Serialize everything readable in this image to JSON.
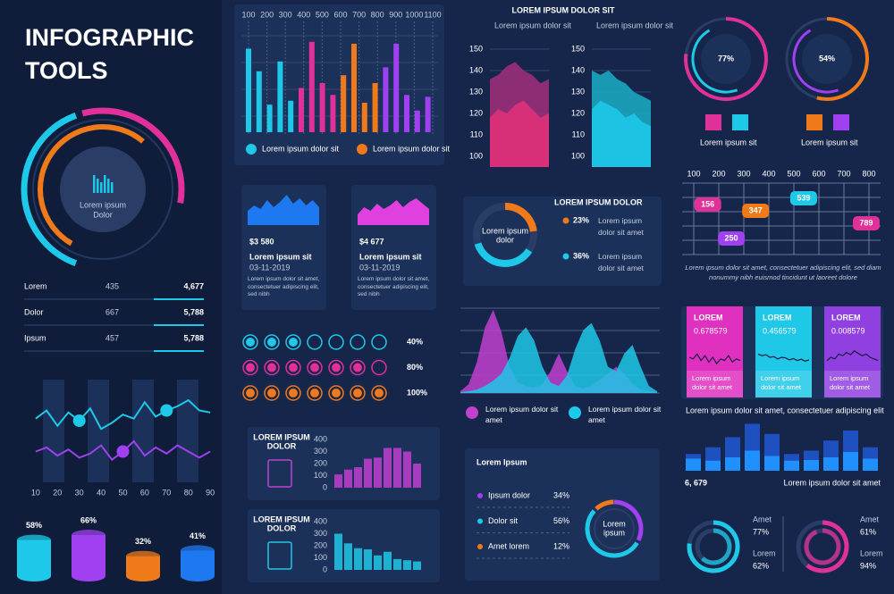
{
  "title_lines": [
    "INFOGRAPHIC",
    "TOOLS"
  ],
  "hub": {
    "label_lines": [
      "Lorem ipsum",
      "Dolor"
    ]
  },
  "summary_table": {
    "rows": [
      [
        "Lorem",
        435,
        "4,677"
      ],
      [
        "Dolor",
        667,
        "5,788"
      ],
      [
        "Ipsum",
        457,
        "5,788"
      ]
    ]
  },
  "wave_chart": {
    "type": "line",
    "x": [
      10,
      15,
      20,
      25,
      30,
      35,
      40,
      45,
      50,
      55,
      60,
      65,
      70,
      75,
      80,
      85,
      90
    ],
    "xlim": [
      8,
      92
    ],
    "xticks": [
      10,
      20,
      30,
      40,
      50,
      60,
      70,
      80,
      90
    ],
    "ylim": [
      0,
      100
    ],
    "series": [
      {
        "color": "#1ec8e8",
        "values": [
          62,
          70,
          55,
          68,
          60,
          72,
          52,
          58,
          66,
          62,
          78,
          64,
          70,
          74,
          80,
          70,
          68
        ]
      },
      {
        "color": "#a040f0",
        "values": [
          30,
          34,
          26,
          32,
          24,
          28,
          36,
          22,
          30,
          40,
          26,
          34,
          28,
          36,
          30,
          24,
          30
        ]
      }
    ]
  },
  "cylinders": {
    "type": "bar",
    "values": [
      58,
      66,
      32,
      41
    ],
    "value_labels": [
      "58%",
      "66%",
      "32%",
      "41%"
    ],
    "colors": [
      "#1ec8e8",
      "#a040f0",
      "#f07a1a",
      "#1e78f0"
    ],
    "ylim": [
      0,
      100
    ]
  },
  "column_chart": {
    "type": "bar",
    "xticks": [
      100,
      200,
      300,
      400,
      500,
      600,
      700,
      800,
      900,
      1000,
      1100
    ],
    "xlim": [
      100,
      1100
    ],
    "ylim": [
      0,
      100
    ],
    "values": [
      85,
      62,
      28,
      72,
      32,
      45,
      92,
      50,
      38,
      58,
      90,
      30,
      50,
      66,
      90,
      38,
      22,
      36
    ],
    "colors": [
      "#1ec8e8",
      "#1ec8e8",
      "#1ec8e8",
      "#1ec8e8",
      "#1ec8e8",
      "#e0309a",
      "#e0309a",
      "#e0309a",
      "#e0309a",
      "#f07a1a",
      "#f07a1a",
      "#f07a1a",
      "#f07a1a",
      "#a040f0",
      "#a040f0",
      "#a040f0",
      "#a040f0",
      "#a040f0"
    ],
    "legend": [
      {
        "name": "Lorem ipsum dolor sit",
        "color": "#1ec8e8"
      },
      {
        "name": "Lorem ipsum dolor sit",
        "color": "#f07a1a"
      }
    ]
  },
  "cards": [
    {
      "amount": "$3 580",
      "title": "Lorem ipsum sit",
      "date": "03-11-2019",
      "text": "Lorem ipsum dolor sit amet, consectetuer adipiscing elit, sed nibh",
      "color": "#1e78f0",
      "ylim": [
        0,
        100
      ],
      "values": [
        40,
        55,
        45,
        70,
        50,
        65,
        85,
        60,
        75,
        55,
        70,
        50
      ]
    },
    {
      "amount": "$4 677",
      "title": "Lorem ipsum sit",
      "date": "03-11-2019",
      "text": "Lorem ipsum dolor sit amet, consectetuer adipiscing elit, sed nibh",
      "color": "#e040e0",
      "ylim": [
        0,
        100
      ],
      "values": [
        30,
        50,
        40,
        60,
        45,
        55,
        70,
        50,
        65,
        75,
        60,
        45
      ]
    }
  ],
  "dot_rows": {
    "values": [
      40,
      80,
      100
    ],
    "value_labels": [
      "40%",
      "80%",
      "100%"
    ],
    "colors": [
      "#1ec8e8",
      "#e0309a",
      "#f07a1a"
    ]
  },
  "book_charts": [
    {
      "type": "bar",
      "title_lines": [
        "LOREM IPSUM",
        "DOLOR"
      ],
      "ylim": [
        0,
        400
      ],
      "yticks": [
        0,
        100,
        200,
        300,
        400
      ],
      "color": "#c040d0",
      "values": [
        110,
        150,
        170,
        240,
        250,
        330,
        330,
        300,
        200
      ]
    },
    {
      "type": "bar",
      "title_lines": [
        "LOREM IPSUM",
        "DOLOR"
      ],
      "ylim": [
        0,
        400
      ],
      "yticks": [
        0,
        100,
        200,
        300,
        400
      ],
      "color": "#1ec8e8",
      "values": [
        300,
        220,
        180,
        170,
        120,
        150,
        90,
        80,
        70
      ]
    }
  ],
  "area_panels": {
    "title": "LOREM IPSUM DOLOR SIT",
    "panels": [
      {
        "label": "Lorem ipsum dolor sit",
        "type": "area",
        "ylim": [
          95,
          155
        ],
        "yticks": [
          100,
          110,
          120,
          130,
          140,
          150
        ],
        "series": [
          {
            "color": "#9a2f78",
            "values": [
              136,
              138,
              142,
              144,
              140,
              138,
              134,
              136
            ]
          },
          {
            "color": "#e0307a",
            "values": [
              118,
              122,
              120,
              124,
              126,
              122,
              118,
              120
            ]
          }
        ]
      },
      {
        "label": "Lorem ipsum dolor sit",
        "type": "area",
        "ylim": [
          95,
          155
        ],
        "yticks": [
          100,
          110,
          120,
          130,
          140,
          150
        ],
        "series": [
          {
            "color": "#1aa6c0",
            "values": [
              140,
              138,
              140,
              136,
              134,
              130,
              128,
              126
            ]
          },
          {
            "color": "#1ec8e8",
            "values": [
              122,
              126,
              124,
              122,
              118,
              120,
              116,
              114
            ]
          }
        ]
      }
    ]
  },
  "ring_donut": {
    "title": "LOREM IPSUM DOLOR",
    "center_lines": [
      "Lorem ipsum",
      "dolor"
    ],
    "items": [
      {
        "value": 23,
        "label": "23%",
        "text": "Lorem ipsum dolor sit amet",
        "color": "#f07a1a"
      },
      {
        "value": 36,
        "label": "36%",
        "text": "Lorem ipsum dolor sit amet",
        "color": "#1ec8e8"
      }
    ]
  },
  "peaks": {
    "type": "area",
    "ylim": [
      0,
      100
    ],
    "series": [
      {
        "name": "Lorem ipsum dolor sit amet",
        "color": "#c040d0",
        "values": [
          2,
          10,
          35,
          75,
          95,
          70,
          30,
          12,
          8,
          6,
          10,
          25,
          45,
          25,
          8,
          5,
          8,
          15,
          22,
          30,
          22,
          10,
          4,
          2,
          1
        ]
      },
      {
        "name": "Lorem ipsum dolor sit amet",
        "color": "#1ec8e8",
        "values": [
          1,
          2,
          4,
          8,
          14,
          22,
          40,
          65,
          75,
          60,
          30,
          12,
          8,
          20,
          50,
          72,
          80,
          60,
          30,
          25,
          45,
          55,
          30,
          8,
          2
        ]
      }
    ]
  },
  "pie_panel": {
    "title": "Lorem Ipsum",
    "center_lines": [
      "Lorem",
      "ipsum"
    ],
    "items": [
      {
        "name": "Ipsum dolor",
        "value": 34,
        "label": "34%",
        "color": "#a040f0"
      },
      {
        "name": "Dolor sit",
        "value": 56,
        "label": "56%",
        "color": "#1ec8e8"
      },
      {
        "name": "Amet lorem",
        "value": 12,
        "label": "12%",
        "color": "#f07a1a"
      }
    ]
  },
  "progress_rings": [
    {
      "value": 77,
      "label": "77%",
      "caption": "Lorem ipsum sit",
      "colors": [
        "#e0309a",
        "#1ec8e8"
      ]
    },
    {
      "value": 54,
      "label": "54%",
      "caption": "Lorem ipsum sit",
      "colors": [
        "#f07a1a",
        "#a040f0"
      ]
    }
  ],
  "bubble_grid": {
    "xticks": [
      100,
      200,
      300,
      400,
      500,
      600,
      700,
      800
    ],
    "xlim": [
      100,
      800
    ],
    "values": [
      156,
      347,
      539,
      789,
      250
    ],
    "colors": [
      "#e0309a",
      "#f07a1a",
      "#1ec8e8",
      "#e0309a",
      "#a040f0"
    ],
    "text": "Lorem ipsum dolor sit amet, consectetuer adipiscing elit, sed diam nonummy nibh euismod tincidunt ut laoreet dolore"
  },
  "stock_cards": {
    "cards": [
      {
        "title": "LOREM",
        "value": "0.678579",
        "caption": "Lorem ipsum dolor sit amet",
        "color": "#e030c0",
        "values": [
          50,
          45,
          60,
          40,
          55,
          35,
          50,
          30,
          45,
          40,
          55,
          35,
          45,
          40
        ]
      },
      {
        "title": "LOREM",
        "value": "0.456579",
        "caption": "Lorem ipsum dolor sit amet",
        "color": "#20c8e8",
        "values": [
          60,
          55,
          58,
          50,
          52,
          45,
          50,
          48,
          42,
          46,
          40,
          44,
          38,
          42
        ]
      },
      {
        "title": "LOREM",
        "value": "0.008579",
        "caption": "Lorem ipsum dolor sit amet",
        "color": "#9040e0",
        "values": [
          40,
          50,
          45,
          60,
          55,
          65,
          58,
          70,
          62,
          55,
          60,
          50,
          45,
          40
        ]
      }
    ],
    "ylim": [
      0,
      100
    ],
    "caption": "Lorem ipsum dolor sit amet, consectetuer adipiscing elit"
  },
  "blue_bars": {
    "type": "bar",
    "ylim": [
      0,
      80
    ],
    "series": [
      {
        "color": "#1e50c0",
        "values": [
          25,
          35,
          50,
          70,
          55,
          25,
          30,
          45,
          60,
          35
        ]
      },
      {
        "color": "#2090ff",
        "values": [
          18,
          15,
          20,
          30,
          22,
          15,
          16,
          20,
          28,
          18
        ]
      }
    ],
    "total": "6, 679",
    "caption": "Lorem ipsum dolor sit amet"
  },
  "mini_rings": [
    {
      "color": "#1ec8e8",
      "items": [
        {
          "name": "Amet",
          "value": 77,
          "label": "77%"
        },
        {
          "name": "Lorem",
          "value": 62,
          "label": "62%"
        }
      ]
    },
    {
      "color": "#e0309a",
      "items": [
        {
          "name": "Amet",
          "value": 61,
          "label": "61%"
        },
        {
          "name": "Lorem",
          "value": 94,
          "label": "94%"
        }
      ]
    }
  ]
}
